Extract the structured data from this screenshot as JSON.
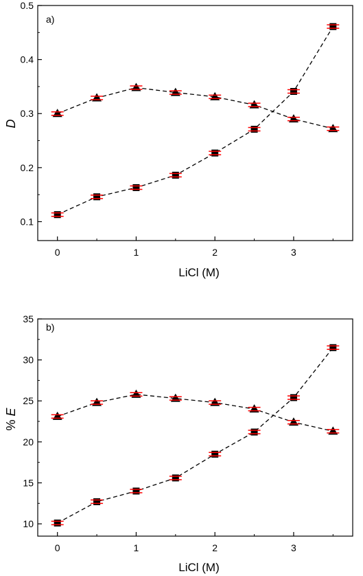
{
  "chart_data": [
    {
      "type": "scatter",
      "panel_label": "a)",
      "xlabel": "LiCl (M)",
      "ylabel": "D",
      "xlim": [
        -0.25,
        3.75
      ],
      "ylim": [
        0.065,
        0.5
      ],
      "xticks": [
        0,
        1,
        2,
        3
      ],
      "yticks": [
        0.1,
        0.2,
        0.3,
        0.4,
        0.5
      ],
      "ytick_labels": [
        "0.1",
        "0.2",
        "0.3",
        "0.4",
        "0.5"
      ],
      "grid": false,
      "series": [
        {
          "marker": "square",
          "x": [
            0,
            0.5,
            1,
            1.5,
            2,
            2.5,
            3,
            3.5
          ],
          "values": [
            0.113,
            0.146,
            0.163,
            0.186,
            0.227,
            0.271,
            0.341,
            0.461
          ]
        },
        {
          "marker": "triangle",
          "x": [
            0,
            0.5,
            1,
            1.5,
            2,
            2.5,
            3,
            3.5
          ],
          "values": [
            0.3,
            0.329,
            0.348,
            0.339,
            0.331,
            0.316,
            0.29,
            0.272
          ]
        }
      ]
    },
    {
      "type": "scatter",
      "panel_label": "b)",
      "xlabel": "LiCl (M)",
      "ylabel": "% E",
      "xlim": [
        -0.25,
        3.75
      ],
      "ylim": [
        8.5,
        35
      ],
      "xticks": [
        0,
        1,
        2,
        3
      ],
      "yticks": [
        10,
        15,
        20,
        25,
        30,
        35
      ],
      "ytick_labels": [
        "10",
        "15",
        "20",
        "25",
        "30",
        "35"
      ],
      "grid": false,
      "series": [
        {
          "marker": "square",
          "x": [
            0,
            0.5,
            1,
            1.5,
            2,
            2.5,
            3,
            3.5
          ],
          "values": [
            10.1,
            12.7,
            14.0,
            15.6,
            18.5,
            21.2,
            25.4,
            31.5
          ]
        },
        {
          "marker": "triangle",
          "x": [
            0,
            0.5,
            1,
            1.5,
            2,
            2.5,
            3,
            3.5
          ],
          "values": [
            23.1,
            24.8,
            25.8,
            25.3,
            24.8,
            24.0,
            22.4,
            21.3
          ]
        }
      ]
    }
  ],
  "colors": {
    "marker_fill": "#000000",
    "marker_edge": "#000000",
    "error_bar": "#ff0000",
    "line": "#000000",
    "axes": "#000000",
    "background": "#ffffff"
  }
}
